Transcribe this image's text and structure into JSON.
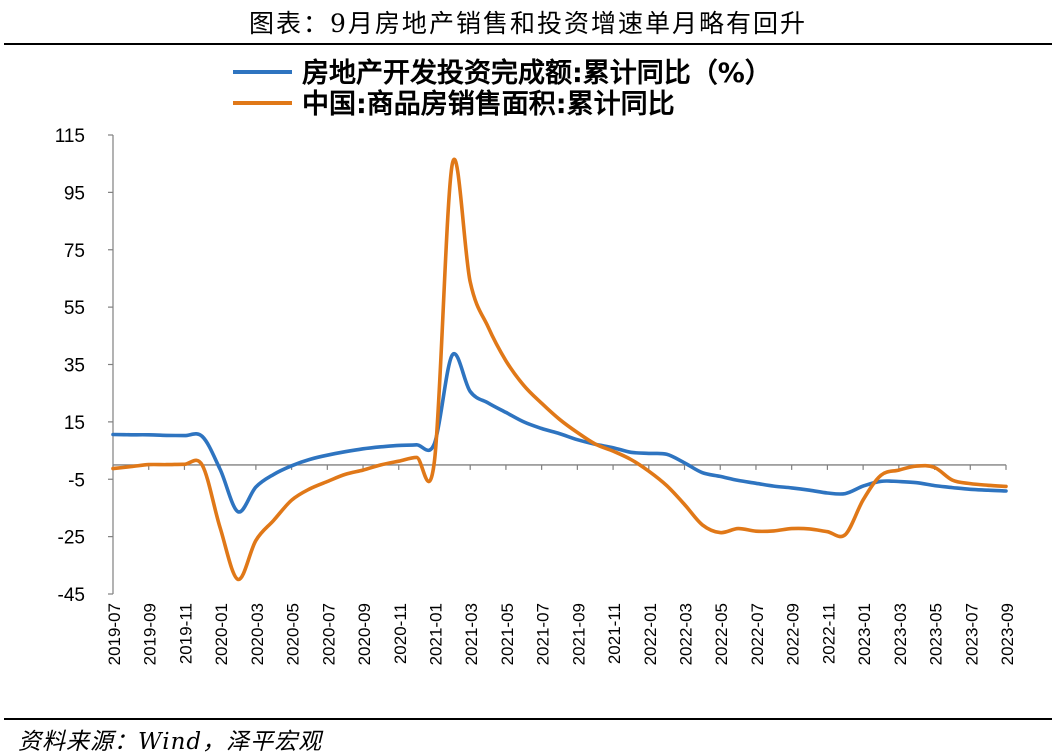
{
  "header": {
    "title": "图表：9月房地产销售和投资增速单月略有回升"
  },
  "footer": {
    "source": "资料来源：Wind，泽平宏观"
  },
  "chart_data": {
    "type": "line",
    "title": "图表：9月房地产销售和投资增速单月略有回升",
    "xlabel": "",
    "ylabel": "",
    "ylim": [
      -45,
      115
    ],
    "yticks": [
      115,
      95,
      75,
      55,
      35,
      15,
      -5,
      -25,
      -45
    ],
    "xlim": [
      "2019-07",
      "2023-09"
    ],
    "xticks": [
      "2019-07",
      "2019-09",
      "2019-11",
      "2020-01",
      "2020-03",
      "2020-05",
      "2020-07",
      "2020-09",
      "2020-11",
      "2021-01",
      "2021-03",
      "2021-05",
      "2021-07",
      "2021-09",
      "2021-11",
      "2022-01",
      "2022-03",
      "2022-05",
      "2022-07",
      "2022-09",
      "2022-11",
      "2023-01",
      "2023-03",
      "2023-05",
      "2023-07",
      "2023-09"
    ],
    "grid": false,
    "legend": "top-center",
    "zero_line": true,
    "series": [
      {
        "name": "房地产开发投资完成额:累计同比（%）",
        "color": "#2e74c0",
        "x": [
          "2019-07",
          "2019-08",
          "2019-09",
          "2019-10",
          "2019-11",
          "2019-12",
          "2020-01",
          "2020-02",
          "2020-03",
          "2020-04",
          "2020-05",
          "2020-06",
          "2020-07",
          "2020-08",
          "2020-09",
          "2020-10",
          "2020-11",
          "2020-12",
          "2021-01",
          "2021-02",
          "2021-03",
          "2021-04",
          "2021-05",
          "2021-06",
          "2021-07",
          "2021-08",
          "2021-09",
          "2021-10",
          "2021-11",
          "2021-12",
          "2022-01",
          "2022-02",
          "2022-03",
          "2022-04",
          "2022-05",
          "2022-06",
          "2022-07",
          "2022-08",
          "2022-09",
          "2022-10",
          "2022-11",
          "2022-12",
          "2023-01",
          "2023-02",
          "2023-03",
          "2023-04",
          "2023-05",
          "2023-06",
          "2023-07",
          "2023-08",
          "2023-09"
        ],
        "values": [
          10.6,
          10.5,
          10.5,
          10.3,
          10.2,
          9.9,
          -1.6,
          -16.3,
          -7.7,
          -3.3,
          -0.3,
          1.9,
          3.4,
          4.6,
          5.6,
          6.3,
          6.8,
          7.0,
          7.5,
          38.3,
          25.6,
          21.6,
          18.3,
          15.0,
          12.7,
          10.9,
          8.8,
          7.2,
          6.0,
          4.4,
          4.0,
          3.7,
          0.7,
          -2.7,
          -4.0,
          -5.4,
          -6.4,
          -7.4,
          -8.0,
          -8.8,
          -9.8,
          -10.0,
          -7.4,
          -5.7,
          -5.8,
          -6.2,
          -7.2,
          -7.9,
          -8.5,
          -8.8,
          -9.1
        ]
      },
      {
        "name": "中国:商品房销售面积:累计同比",
        "color": "#e07818",
        "x": [
          "2019-07",
          "2019-08",
          "2019-09",
          "2019-10",
          "2019-11",
          "2019-12",
          "2020-01",
          "2020-02",
          "2020-03",
          "2020-04",
          "2020-05",
          "2020-06",
          "2020-07",
          "2020-08",
          "2020-09",
          "2020-10",
          "2020-11",
          "2020-12",
          "2021-01",
          "2021-02",
          "2021-03",
          "2021-04",
          "2021-05",
          "2021-06",
          "2021-07",
          "2021-08",
          "2021-09",
          "2021-10",
          "2021-11",
          "2021-12",
          "2022-01",
          "2022-02",
          "2022-03",
          "2022-04",
          "2022-05",
          "2022-06",
          "2022-07",
          "2022-08",
          "2022-09",
          "2022-10",
          "2022-11",
          "2022-12",
          "2023-01",
          "2023-02",
          "2023-03",
          "2023-04",
          "2023-05",
          "2023-06",
          "2023-07",
          "2023-08",
          "2023-09"
        ],
        "values": [
          -1.3,
          -0.6,
          0.1,
          0.1,
          0.2,
          -0.1,
          -22.0,
          -39.9,
          -26.3,
          -19.3,
          -12.3,
          -8.4,
          -5.8,
          -3.3,
          -1.8,
          0.0,
          1.3,
          2.6,
          1.5,
          104.9,
          63.8,
          48.1,
          36.3,
          27.7,
          21.5,
          15.9,
          11.3,
          7.3,
          4.8,
          1.9,
          -2.2,
          -7.2,
          -13.8,
          -20.9,
          -23.6,
          -22.2,
          -23.1,
          -23.0,
          -22.2,
          -22.3,
          -23.3,
          -24.3,
          -12.2,
          -3.6,
          -1.8,
          -0.4,
          -0.9,
          -5.3,
          -6.5,
          -7.1,
          -7.5
        ]
      }
    ]
  }
}
